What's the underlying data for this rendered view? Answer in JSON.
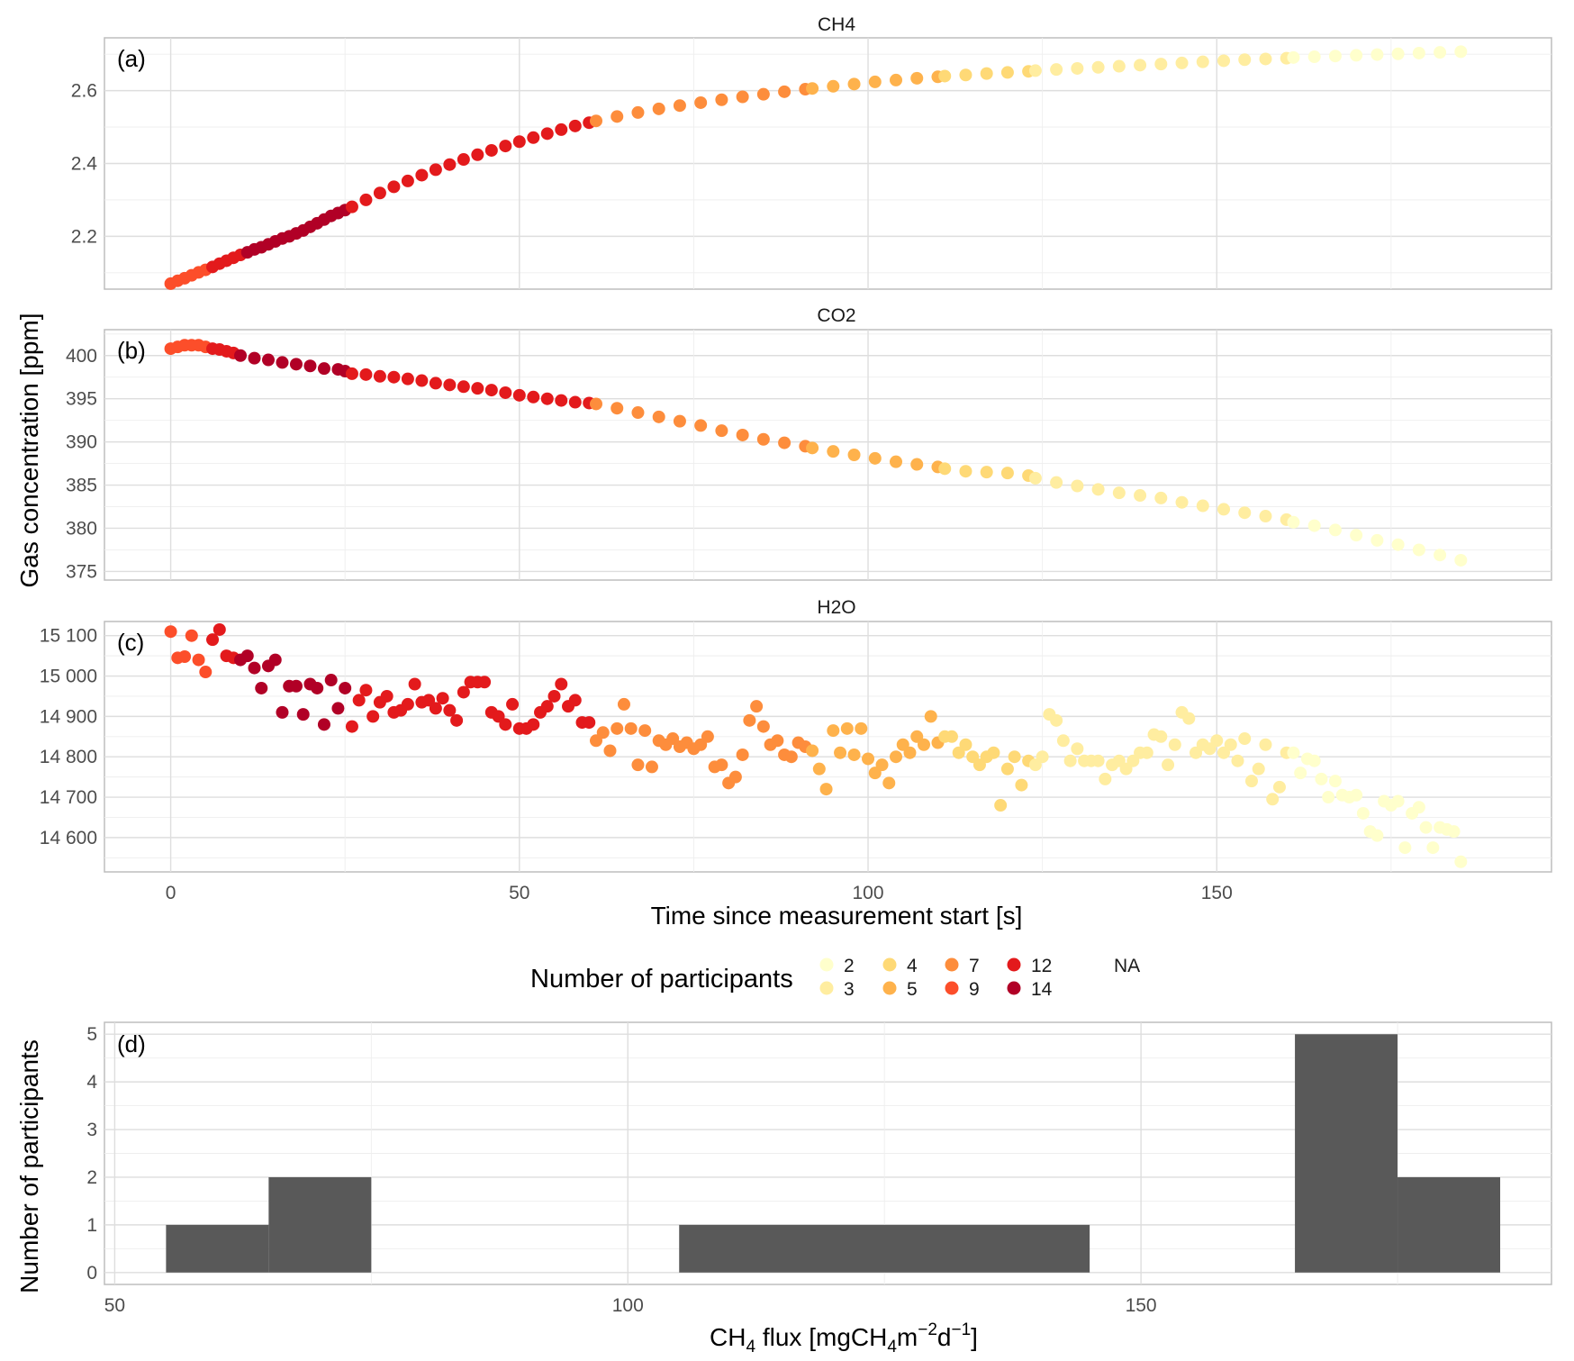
{
  "figure": {
    "y_label_shared": "Gas concentration [ppm]",
    "x_label_top": "Time since measurement start [s]"
  },
  "legend": {
    "title": "Number of participants",
    "entries": [
      {
        "label": "2",
        "color": "#FFFFCC"
      },
      {
        "label": "3",
        "color": "#FFEDA0"
      },
      {
        "label": "4",
        "color": "#FED976"
      },
      {
        "label": "5",
        "color": "#FEB24C"
      },
      {
        "label": "7",
        "color": "#FD8D3C"
      },
      {
        "label": "9",
        "color": "#FC4E2A"
      },
      {
        "label": "12",
        "color": "#E31A1C"
      },
      {
        "label": "14",
        "color": "#B10026"
      },
      {
        "label": "NA",
        "color": ""
      }
    ]
  },
  "chart_data": [
    {
      "type": "scatter",
      "panel_tag": "(a)",
      "title": "CH4",
      "xlim": [
        -9.5,
        198
      ],
      "ylim": [
        2.055,
        2.745
      ],
      "x_ticks": [
        0,
        50,
        100,
        150
      ],
      "x_tick_labels": [
        "0",
        "50",
        "100",
        "150"
      ],
      "y_ticks": [
        2.2,
        2.4,
        2.6
      ],
      "y_tick_labels": [
        "2.2",
        "2.4",
        "2.6"
      ],
      "segments": [
        {
          "participants": "9",
          "x": [
            0,
            1,
            2,
            3,
            4,
            5
          ],
          "y": [
            2.07,
            2.078,
            2.085,
            2.093,
            2.101,
            2.108
          ]
        },
        {
          "participants": "12",
          "x": [
            6,
            7,
            8,
            9,
            10
          ],
          "y": [
            2.116,
            2.125,
            2.133,
            2.141,
            2.149
          ]
        },
        {
          "participants": "14",
          "x": [
            11,
            12,
            13,
            14,
            15,
            16,
            17,
            18,
            19,
            20,
            21,
            22,
            23,
            24,
            25
          ],
          "y": [
            2.156,
            2.164,
            2.17,
            2.178,
            2.186,
            2.194,
            2.2,
            2.208,
            2.216,
            2.226,
            2.236,
            2.246,
            2.256,
            2.264,
            2.272
          ]
        },
        {
          "participants": "12",
          "x": [
            26,
            28,
            30,
            32,
            34,
            36,
            38,
            40,
            42,
            44,
            46,
            48,
            50,
            52,
            54,
            56,
            58,
            60
          ],
          "y": [
            2.281,
            2.3,
            2.319,
            2.336,
            2.352,
            2.368,
            2.383,
            2.397,
            2.411,
            2.424,
            2.436,
            2.448,
            2.46,
            2.471,
            2.482,
            2.493,
            2.503,
            2.512
          ]
        },
        {
          "participants": "7",
          "x": [
            61,
            64,
            67,
            70,
            73,
            76,
            79,
            82,
            85,
            88,
            91
          ],
          "y": [
            2.517,
            2.529,
            2.54,
            2.55,
            2.559,
            2.567,
            2.575,
            2.583,
            2.59,
            2.597,
            2.604
          ]
        },
        {
          "participants": "5",
          "x": [
            92,
            95,
            98,
            101,
            104,
            107,
            110
          ],
          "y": [
            2.606,
            2.612,
            2.618,
            2.624,
            2.629,
            2.634,
            2.638
          ]
        },
        {
          "participants": "4",
          "x": [
            111,
            114,
            117,
            120,
            123
          ],
          "y": [
            2.64,
            2.643,
            2.647,
            2.65,
            2.653
          ]
        },
        {
          "participants": "3",
          "x": [
            124,
            127,
            130,
            133,
            136,
            139,
            142,
            145,
            148,
            151,
            154,
            157,
            160
          ],
          "y": [
            2.655,
            2.658,
            2.661,
            2.664,
            2.667,
            2.67,
            2.673,
            2.676,
            2.679,
            2.682,
            2.685,
            2.687,
            2.689
          ]
        },
        {
          "participants": "2",
          "x": [
            161,
            164,
            167,
            170,
            173,
            176,
            179,
            182,
            185
          ],
          "y": [
            2.691,
            2.693,
            2.695,
            2.697,
            2.699,
            2.701,
            2.703,
            2.705,
            2.707
          ]
        }
      ]
    },
    {
      "type": "scatter",
      "panel_tag": "(b)",
      "title": "CO2",
      "xlim": [
        -9.5,
        198
      ],
      "ylim": [
        374,
        403
      ],
      "x_ticks": [
        0,
        50,
        100,
        150
      ],
      "x_tick_labels": [
        "0",
        "50",
        "100",
        "150"
      ],
      "y_ticks": [
        375,
        380,
        385,
        390,
        395,
        400
      ],
      "y_tick_labels": [
        "375",
        "380",
        "385",
        "390",
        "395",
        "400"
      ],
      "segments": [
        {
          "participants": "9",
          "x": [
            0,
            1,
            2,
            3,
            4,
            5
          ],
          "y": [
            400.8,
            401.0,
            401.2,
            401.2,
            401.2,
            401.0
          ]
        },
        {
          "participants": "12",
          "x": [
            6,
            7,
            8,
            9
          ],
          "y": [
            400.8,
            400.7,
            400.5,
            400.3
          ]
        },
        {
          "participants": "14",
          "x": [
            10,
            12,
            14,
            16,
            18,
            20,
            22,
            24,
            25
          ],
          "y": [
            400.0,
            399.7,
            399.5,
            399.2,
            399.0,
            398.8,
            398.5,
            398.4,
            398.2
          ]
        },
        {
          "participants": "12",
          "x": [
            26,
            28,
            30,
            32,
            34,
            36,
            38,
            40,
            42,
            44,
            46,
            48,
            50,
            52,
            54,
            56,
            58,
            60
          ],
          "y": [
            397.9,
            397.8,
            397.6,
            397.5,
            397.3,
            397.1,
            396.8,
            396.6,
            396.4,
            396.2,
            396.0,
            395.7,
            395.4,
            395.2,
            395.0,
            394.8,
            394.6,
            394.5
          ]
        },
        {
          "participants": "7",
          "x": [
            61,
            64,
            67,
            70,
            73,
            76,
            79,
            82,
            85,
            88,
            91
          ],
          "y": [
            394.4,
            393.9,
            393.4,
            392.9,
            392.4,
            391.9,
            391.3,
            390.8,
            390.3,
            389.9,
            389.5
          ]
        },
        {
          "participants": "5",
          "x": [
            92,
            95,
            98,
            101,
            104,
            107,
            110
          ],
          "y": [
            389.3,
            388.9,
            388.5,
            388.1,
            387.7,
            387.4,
            387.1
          ]
        },
        {
          "participants": "4",
          "x": [
            111,
            114,
            117,
            120,
            123
          ],
          "y": [
            386.9,
            386.6,
            386.5,
            386.4,
            386.1
          ]
        },
        {
          "participants": "3",
          "x": [
            124,
            127,
            130,
            133,
            136,
            139,
            142,
            145,
            148,
            151,
            154,
            157,
            160
          ],
          "y": [
            385.8,
            385.3,
            384.9,
            384.5,
            384.1,
            383.8,
            383.5,
            383.0,
            382.6,
            382.2,
            381.8,
            381.4,
            381.0
          ]
        },
        {
          "participants": "2",
          "x": [
            161,
            164,
            167,
            170,
            173,
            176,
            179,
            182,
            185
          ],
          "y": [
            380.7,
            380.3,
            379.8,
            379.2,
            378.6,
            378.1,
            377.5,
            376.9,
            376.3
          ]
        }
      ]
    },
    {
      "type": "scatter",
      "panel_tag": "(c)",
      "title": "H2O",
      "xlim": [
        -9.5,
        198
      ],
      "ylim": [
        14515,
        15135
      ],
      "x_ticks": [
        0,
        50,
        100,
        150
      ],
      "x_tick_labels": [
        "0",
        "50",
        "100",
        "150"
      ],
      "y_ticks": [
        14600,
        14700,
        14800,
        14900,
        15000,
        15100
      ],
      "y_tick_labels": [
        "14 600",
        "14 700",
        "14 800",
        "14 900",
        "15 000",
        "15 100"
      ],
      "segments": [
        {
          "participants": "9",
          "x": [
            0,
            1,
            2,
            3,
            4,
            5
          ],
          "y": [
            15110,
            15045,
            15048,
            15100,
            15040,
            15010
          ]
        },
        {
          "participants": "12",
          "x": [
            6,
            7,
            8,
            9
          ],
          "y": [
            15090,
            15115,
            15050,
            15045
          ]
        },
        {
          "participants": "14",
          "x": [
            10,
            11,
            12,
            13,
            14,
            15,
            16,
            17,
            18,
            19,
            20,
            21,
            22,
            23,
            24,
            25
          ],
          "y": [
            15040,
            15050,
            15020,
            14970,
            15025,
            15040,
            14910,
            14975,
            14975,
            14905,
            14980,
            14970,
            14880,
            14990,
            14920,
            14970
          ]
        },
        {
          "participants": "12",
          "x": [
            26,
            27,
            28,
            29,
            30,
            31,
            32,
            33,
            34,
            35,
            36,
            37,
            38,
            39,
            40,
            41,
            42,
            43,
            44,
            45,
            46,
            47,
            48,
            49,
            50,
            51,
            52,
            53,
            54,
            55,
            56,
            57,
            58,
            59,
            60
          ],
          "y": [
            14875,
            14940,
            14965,
            14900,
            14935,
            14950,
            14910,
            14915,
            14930,
            14980,
            14935,
            14940,
            14920,
            14945,
            14915,
            14890,
            14960,
            14985,
            14985,
            14985,
            14910,
            14900,
            14880,
            14930,
            14870,
            14870,
            14880,
            14910,
            14925,
            14950,
            14980,
            14925,
            14940,
            14885,
            14885
          ]
        },
        {
          "participants": "7",
          "x": [
            61,
            62,
            63,
            64,
            65,
            66,
            67,
            68,
            69,
            70,
            71,
            72,
            73,
            74,
            75,
            76,
            77,
            78,
            79,
            80,
            81,
            82,
            83,
            84,
            85,
            86,
            87,
            88,
            89,
            90,
            91
          ],
          "y": [
            14840,
            14860,
            14815,
            14870,
            14930,
            14870,
            14780,
            14865,
            14775,
            14840,
            14830,
            14845,
            14825,
            14835,
            14820,
            14830,
            14850,
            14775,
            14780,
            14735,
            14750,
            14805,
            14890,
            14925,
            14875,
            14830,
            14840,
            14805,
            14800,
            14835,
            14825
          ]
        },
        {
          "participants": "5",
          "x": [
            92,
            93,
            94,
            95,
            96,
            97,
            98,
            99,
            100,
            101,
            102,
            103,
            104,
            105,
            106,
            107,
            108,
            109,
            110
          ],
          "y": [
            14815,
            14770,
            14720,
            14865,
            14810,
            14870,
            14805,
            14870,
            14795,
            14760,
            14780,
            14735,
            14800,
            14830,
            14810,
            14850,
            14830,
            14900,
            14835
          ]
        },
        {
          "participants": "4",
          "x": [
            111,
            112,
            113,
            114,
            115,
            116,
            117,
            118,
            119,
            120,
            121,
            122,
            123
          ],
          "y": [
            14850,
            14850,
            14810,
            14830,
            14800,
            14780,
            14800,
            14810,
            14680,
            14770,
            14800,
            14730,
            14790
          ]
        },
        {
          "participants": "3",
          "x": [
            124,
            125,
            126,
            127,
            128,
            129,
            130,
            131,
            132,
            133,
            134,
            135,
            136,
            137,
            138,
            139,
            140,
            141,
            142,
            143,
            144,
            145,
            146,
            147,
            148,
            149,
            150,
            151,
            152,
            153,
            154,
            155,
            156,
            157,
            158,
            159,
            160
          ],
          "y": [
            14780,
            14800,
            14905,
            14890,
            14840,
            14790,
            14820,
            14790,
            14790,
            14790,
            14745,
            14780,
            14790,
            14770,
            14790,
            14810,
            14810,
            14855,
            14850,
            14780,
            14830,
            14910,
            14895,
            14810,
            14830,
            14820,
            14840,
            14810,
            14830,
            14790,
            14845,
            14740,
            14770,
            14830,
            14695,
            14725,
            14810
          ]
        },
        {
          "participants": "2",
          "x": [
            161,
            162,
            163,
            164,
            165,
            166,
            167,
            168,
            169,
            170,
            171,
            172,
            173,
            174,
            175,
            176,
            177,
            178,
            179,
            180,
            181,
            182,
            183,
            184,
            185
          ],
          "y": [
            14810,
            14760,
            14795,
            14790,
            14745,
            14700,
            14740,
            14705,
            14700,
            14705,
            14660,
            14615,
            14605,
            14690,
            14680,
            14690,
            14575,
            14660,
            14675,
            14625,
            14575,
            14625,
            14620,
            14615,
            14540
          ]
        }
      ]
    },
    {
      "type": "bar",
      "panel_tag": "(d)",
      "title": "",
      "xlabel": "CH4 flux [mgCH4m−2d−1]",
      "ylabel": "Number of participants",
      "xlim": [
        49,
        190
      ],
      "ylim": [
        -0.25,
        5.25
      ],
      "x_ticks": [
        50,
        100,
        150
      ],
      "x_tick_labels": [
        "50",
        "100",
        "150"
      ],
      "y_ticks": [
        0,
        1,
        2,
        3,
        4,
        5
      ],
      "y_tick_labels": [
        "0",
        "1",
        "2",
        "3",
        "4",
        "5"
      ],
      "bins": [
        {
          "start": 55,
          "end": 65,
          "count": 1
        },
        {
          "start": 65,
          "end": 75,
          "count": 2
        },
        {
          "start": 105,
          "end": 145,
          "count": 1
        },
        {
          "start": 165,
          "end": 175,
          "count": 5
        },
        {
          "start": 175,
          "end": 185,
          "count": 2
        }
      ],
      "bar_color": "#595959"
    }
  ]
}
